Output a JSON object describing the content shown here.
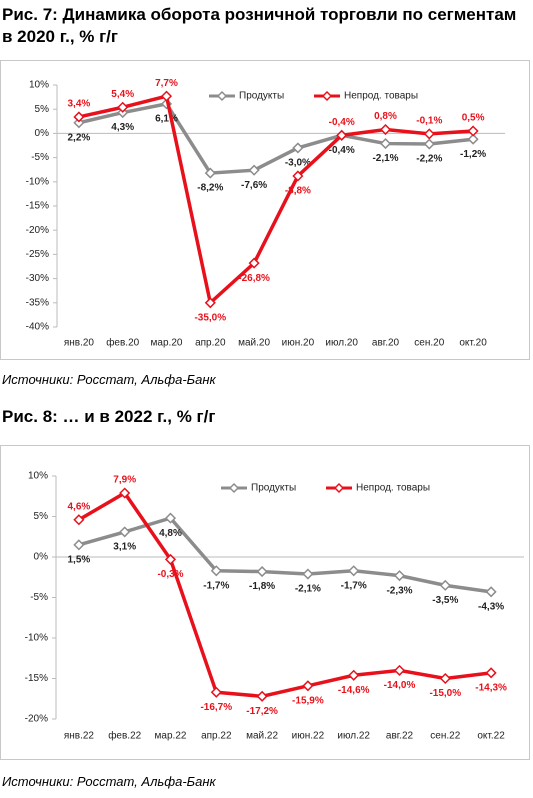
{
  "chart_data": [
    {
      "type": "line",
      "title": "Рис. 7: Динамика оборота розничной торговли по сегментам в 2020 г., % г/г",
      "categories": [
        "янв.20",
        "фев.20",
        "мар.20",
        "апр.20",
        "май.20",
        "июн.20",
        "июл.20",
        "авг.20",
        "сен.20",
        "окт.20"
      ],
      "series": [
        {
          "name": "Продукты",
          "color": "#8c8c8c",
          "values": [
            2.2,
            4.3,
            6.1,
            -8.2,
            -7.6,
            -3.0,
            -0.4,
            -2.1,
            -2.2,
            -1.2
          ],
          "value_labels": [
            "2,2%",
            "4,3%",
            "6,1%",
            "-8,2%",
            "-7,6%",
            "-3,0%",
            "-0,4%",
            "-2,1%",
            "-2,2%",
            "-1,2%"
          ]
        },
        {
          "name": "Непрод. товары",
          "color": "#e8111b",
          "values": [
            3.4,
            5.4,
            7.7,
            -35.0,
            -26.8,
            -8.8,
            -0.4,
            0.8,
            -0.1,
            0.5
          ],
          "value_labels": [
            "3,4%",
            "5,4%",
            "7,7%",
            "-35,0%",
            "-26,8%",
            "-8,8%",
            "-0,4%",
            "0,8%",
            "-0,1%",
            "0,5%"
          ]
        }
      ],
      "ylim": [
        -40,
        10
      ],
      "yticks": [
        {
          "value": 10,
          "label": "10%"
        },
        {
          "value": 5,
          "label": "5%"
        },
        {
          "value": 0,
          "label": "0%"
        },
        {
          "value": -5,
          "label": "-5%"
        },
        {
          "value": -10,
          "label": "-10%"
        },
        {
          "value": -15,
          "label": "-15%"
        },
        {
          "value": -20,
          "label": "-20%"
        },
        {
          "value": -25,
          "label": "-25%"
        },
        {
          "value": -30,
          "label": "-30%"
        },
        {
          "value": -35,
          "label": "-35%"
        },
        {
          "value": -40,
          "label": "-40%"
        }
      ],
      "source": "Источники: Росстат, Альфа-Банк"
    },
    {
      "type": "line",
      "title": "Рис. 8: … и в 2022 г., % г/г",
      "categories": [
        "янв.22",
        "фев.22",
        "мар.22",
        "апр.22",
        "май.22",
        "июн.22",
        "июл.22",
        "авг.22",
        "сен.22",
        "окт.22"
      ],
      "series": [
        {
          "name": "Продукты",
          "color": "#8c8c8c",
          "values": [
            1.5,
            3.1,
            4.8,
            -1.7,
            -1.8,
            -2.1,
            -1.7,
            -2.3,
            -3.5,
            -4.3
          ],
          "value_labels": [
            "1,5%",
            "3,1%",
            "4,8%",
            "-1,7%",
            "-1,8%",
            "-2,1%",
            "-1,7%",
            "-2,3%",
            "-3,5%",
            "-4,3%"
          ]
        },
        {
          "name": "Непрод. товары",
          "color": "#e8111b",
          "values": [
            4.6,
            7.9,
            -0.3,
            -16.7,
            -17.2,
            -15.9,
            -14.6,
            -14.0,
            -15.0,
            -14.3
          ],
          "value_labels": [
            "4,6%",
            "7,9%",
            "-0,3%",
            "-16,7%",
            "-17,2%",
            "-15,9%",
            "-14,6%",
            "-14,0%",
            "-15,0%",
            "-14,3%"
          ]
        }
      ],
      "ylim": [
        -20,
        10
      ],
      "yticks": [
        {
          "value": 10,
          "label": "10%"
        },
        {
          "value": 5,
          "label": "5%"
        },
        {
          "value": 0,
          "label": "0%"
        },
        {
          "value": -5,
          "label": "-5%"
        },
        {
          "value": -10,
          "label": "-10%"
        },
        {
          "value": -15,
          "label": "-15%"
        },
        {
          "value": -20,
          "label": "-20%"
        }
      ],
      "source": "Источники: Росстат, Альфа-Банк"
    }
  ]
}
